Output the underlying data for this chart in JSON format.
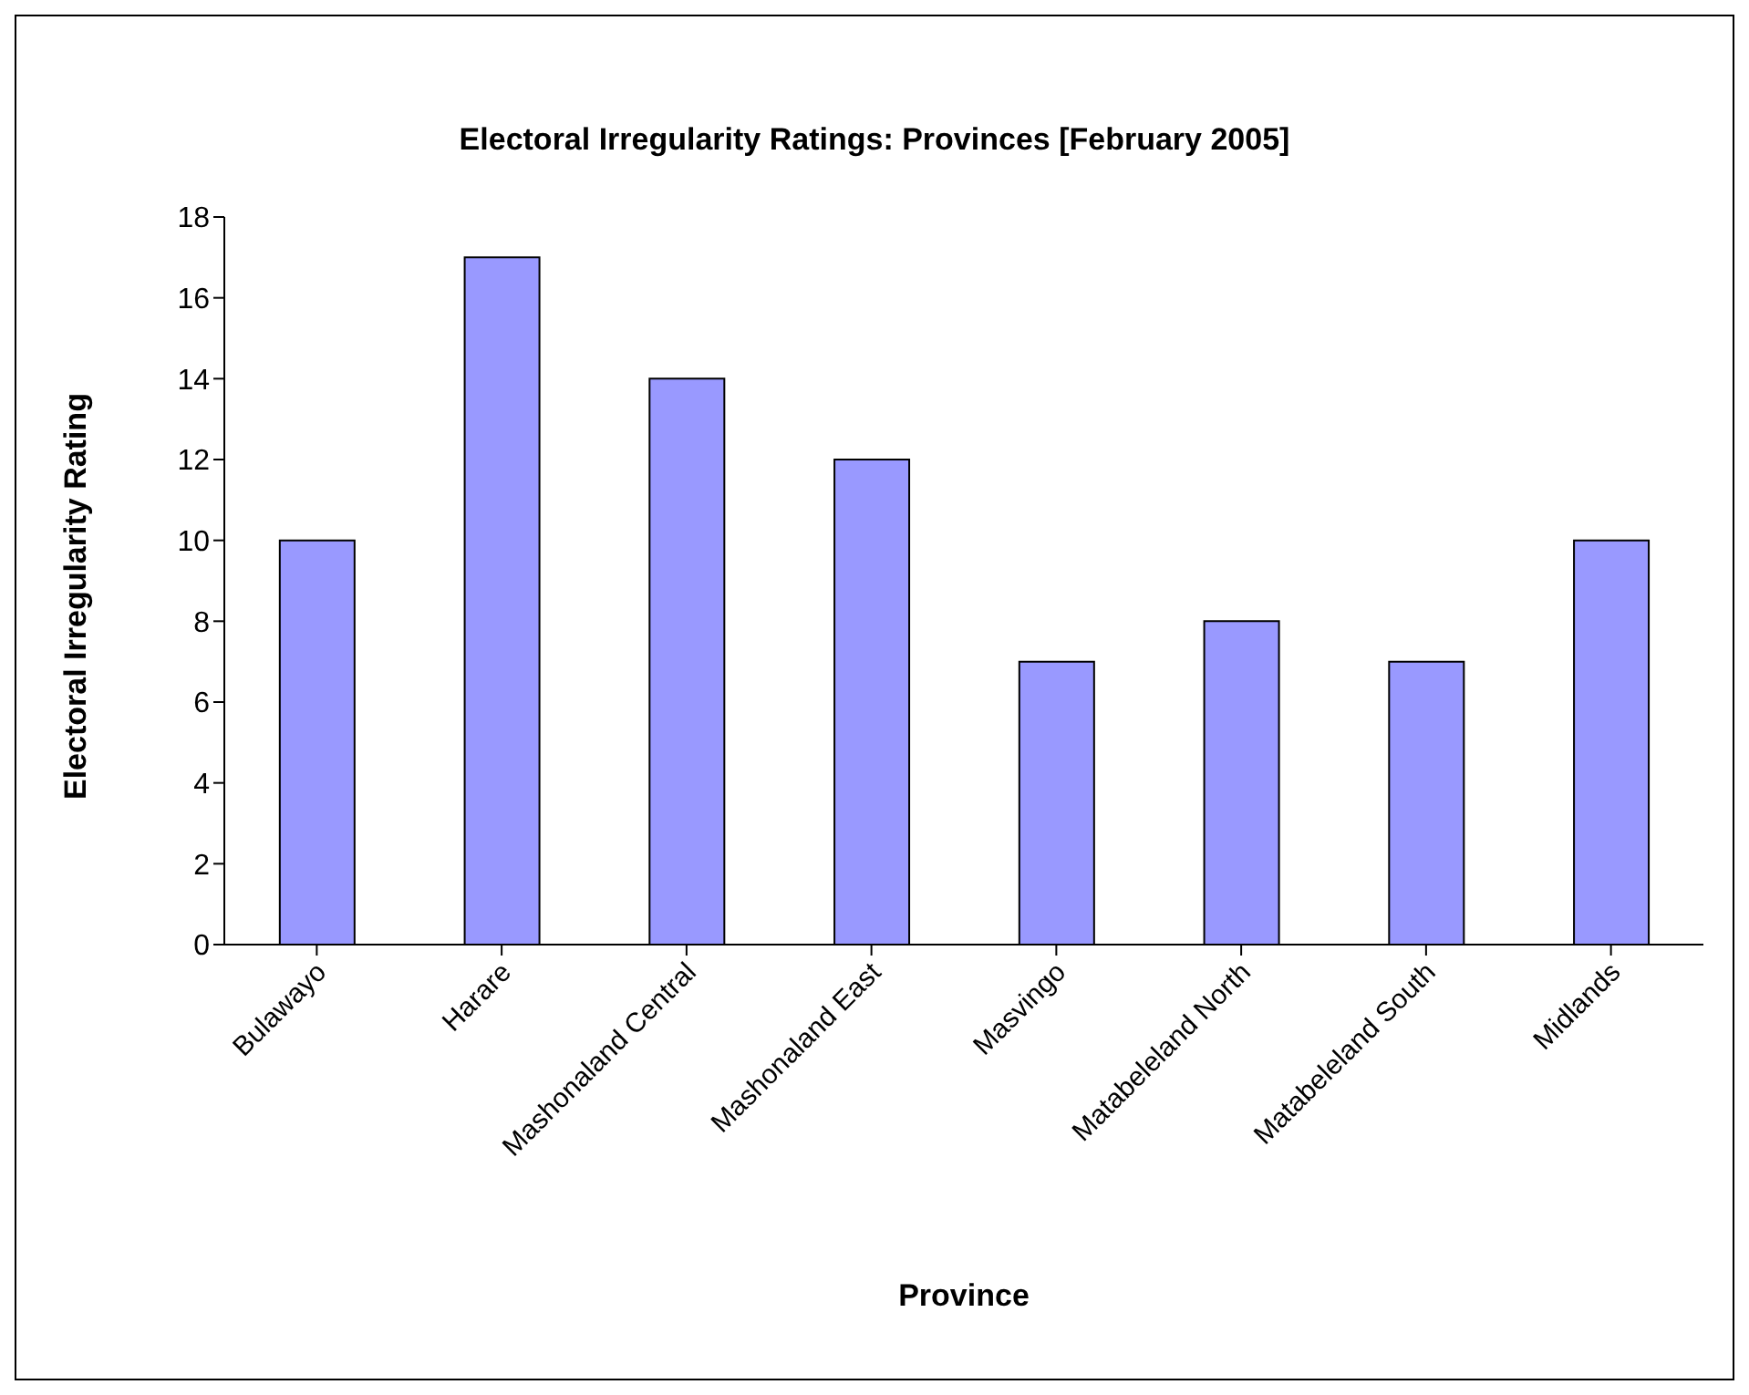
{
  "chart_data": {
    "type": "bar",
    "title": "Electoral Irregularity Ratings: Provinces [February 2005]",
    "xlabel": "Province",
    "ylabel": "Electoral Irregularity Rating",
    "categories": [
      "Bulawayo",
      "Harare",
      "Mashonaland Central",
      "Mashonaland East",
      "Masvingo",
      "Matabeleland North",
      "Matabeleland South",
      "Midlands"
    ],
    "values": [
      10,
      17,
      14,
      12,
      7,
      8,
      7,
      10
    ],
    "color": "#9999ff",
    "ylim": [
      0,
      18
    ],
    "yticks": [
      0,
      2,
      4,
      6,
      8,
      10,
      12,
      14,
      16,
      18
    ]
  }
}
